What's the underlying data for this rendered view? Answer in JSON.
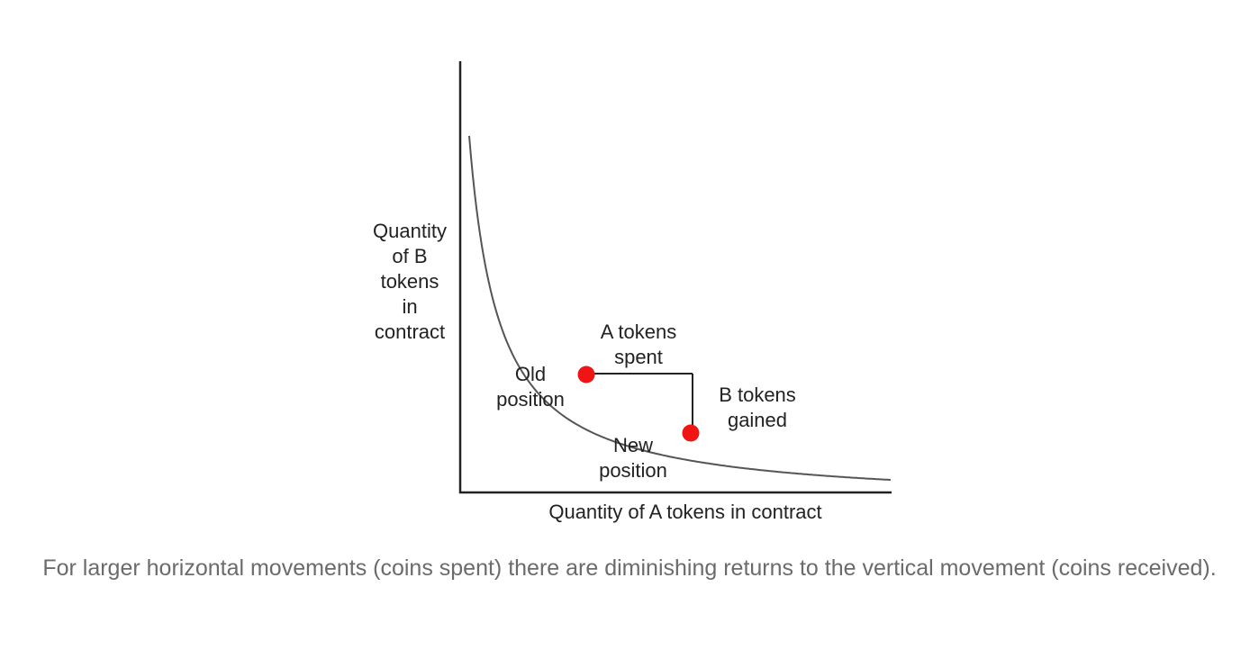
{
  "diagram": {
    "y_axis_label": [
      "Quantity",
      "of B",
      "tokens",
      "in",
      "contract"
    ],
    "x_axis_label": "Quantity of A tokens in contract",
    "old_position_label": [
      "Old",
      "position"
    ],
    "new_position_label": [
      "New",
      "position"
    ],
    "a_tokens_spent_label": [
      "A tokens",
      "spent"
    ],
    "b_tokens_gained_label": [
      "B tokens",
      "gained"
    ],
    "colors": {
      "curve": "#555555",
      "axes": "#222222",
      "points": "#f01414",
      "text": "#222222",
      "caption": "#6b6b6b"
    }
  },
  "caption": "For larger horizontal movements (coins spent) there are diminishing returns to the vertical movement (coins received)."
}
